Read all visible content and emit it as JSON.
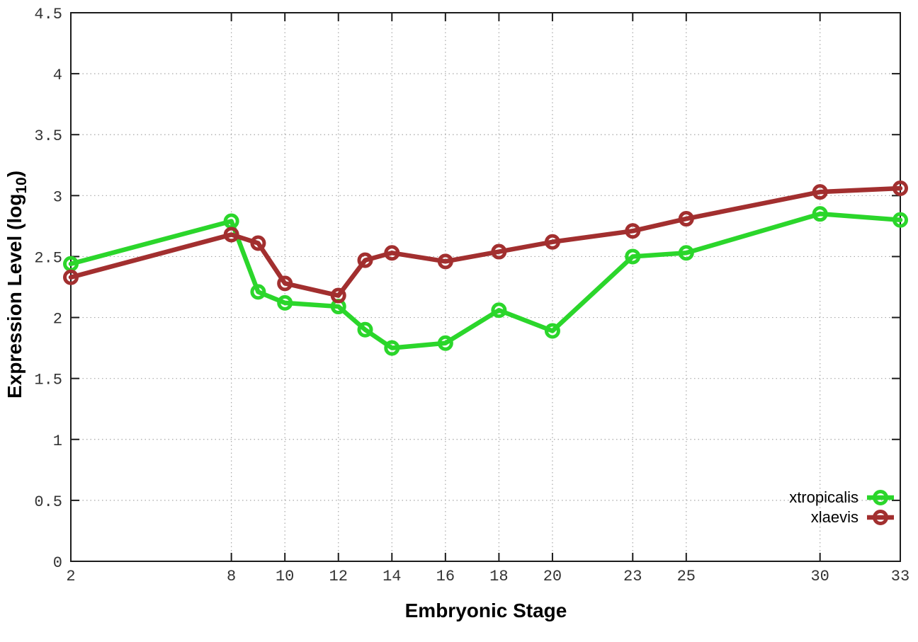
{
  "chart_data": {
    "type": "line",
    "title": "",
    "xlabel": "Embryonic Stage",
    "ylabel": "Expression Level (log10)",
    "ylabel_parts": {
      "main": "Expression Level (log",
      "sub": "10",
      "close": ")"
    },
    "xlim": [
      2,
      33
    ],
    "ylim": [
      0,
      4.5
    ],
    "grid": true,
    "grid_style": "dotted",
    "legend_position": "bottom-right",
    "x": [
      2,
      8,
      9,
      10,
      12,
      13,
      14,
      16,
      18,
      20,
      23,
      25,
      30,
      33
    ],
    "xtick_labels": [
      "2",
      "8",
      "10",
      "12",
      "14",
      "16",
      "18",
      "20",
      "23",
      "25",
      "30",
      "33"
    ],
    "ytick_labels": [
      "0",
      "0.5",
      "1",
      "1.5",
      "2",
      "2.5",
      "3",
      "3.5",
      "4",
      "4.5"
    ],
    "series": [
      {
        "name": "xtropicalis",
        "color": "#2bd62b",
        "marker": "open-circle",
        "values": [
          2.44,
          2.79,
          2.21,
          2.12,
          2.09,
          1.9,
          1.75,
          1.79,
          2.06,
          1.89,
          2.5,
          2.53,
          2.85,
          2.8
        ]
      },
      {
        "name": "xlaevis",
        "color": "#a22f2f",
        "marker": "open-circle",
        "values": [
          2.33,
          2.68,
          2.61,
          2.28,
          2.18,
          2.47,
          2.53,
          2.46,
          2.54,
          2.62,
          2.71,
          2.81,
          3.03,
          3.06
        ]
      }
    ],
    "colors": {
      "border": "#1c1c1c",
      "grid": "#a8a8a8",
      "tick": "#1c1c1c",
      "background": "#ffffff"
    }
  }
}
